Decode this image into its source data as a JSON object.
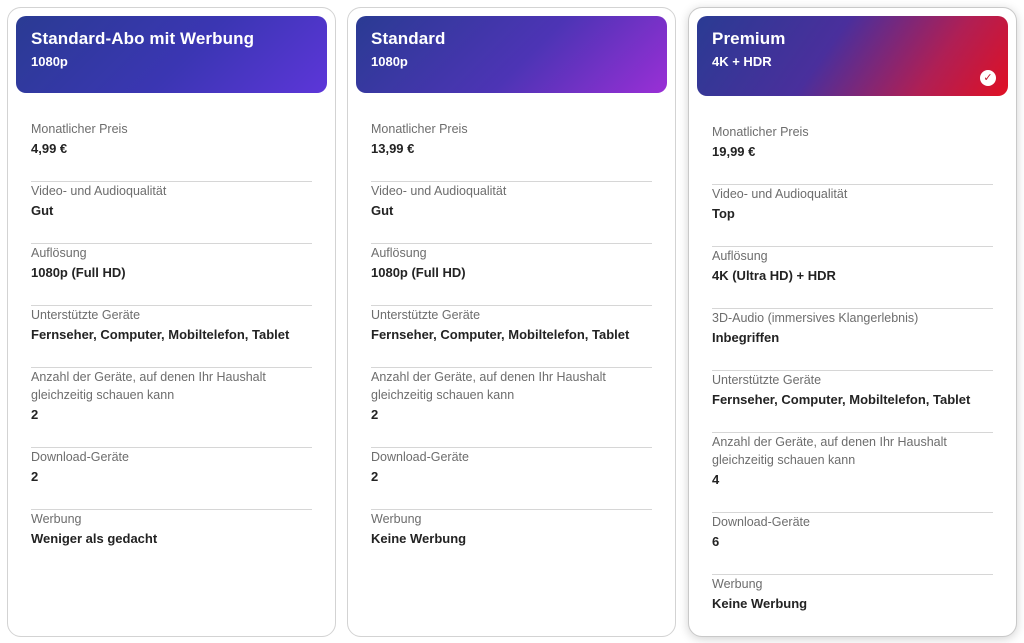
{
  "plans": [
    {
      "name": "Standard-Abo mit Werbung",
      "resolution_tag": "1080p",
      "features": [
        {
          "label": "Monatlicher Preis",
          "value": "4,99 €"
        },
        {
          "label": "Video- und Audioqualität",
          "value": "Gut"
        },
        {
          "label": "Auflösung",
          "value": "1080p (Full HD)"
        },
        {
          "label": "Unterstützte Geräte",
          "value": "Fernseher, Computer, Mobiltelefon, Tablet"
        },
        {
          "label": "Anzahl der Geräte, auf denen Ihr Haushalt gleichzeitig schauen kann",
          "value": "2"
        },
        {
          "label": "Download-Geräte",
          "value": "2"
        },
        {
          "label": "Werbung",
          "value": "Weniger als gedacht"
        }
      ]
    },
    {
      "name": "Standard",
      "resolution_tag": "1080p",
      "features": [
        {
          "label": "Monatlicher Preis",
          "value": "13,99 €"
        },
        {
          "label": "Video- und Audioqualität",
          "value": "Gut"
        },
        {
          "label": "Auflösung",
          "value": "1080p (Full HD)"
        },
        {
          "label": "Unterstützte Geräte",
          "value": "Fernseher, Computer, Mobiltelefon, Tablet"
        },
        {
          "label": "Anzahl der Geräte, auf denen Ihr Haushalt gleichzeitig schauen kann",
          "value": "2"
        },
        {
          "label": "Download-Geräte",
          "value": "2"
        },
        {
          "label": "Werbung",
          "value": "Keine Werbung"
        }
      ]
    },
    {
      "name": "Premium",
      "resolution_tag": "4K + HDR",
      "selected": true,
      "features": [
        {
          "label": "Monatlicher Preis",
          "value": "19,99 €"
        },
        {
          "label": "Video- und Audioqualität",
          "value": "Top"
        },
        {
          "label": "Auflösung",
          "value": "4K (Ultra HD) + HDR"
        },
        {
          "label": "3D-Audio (immersives Klangerlebnis)",
          "value": "Inbegriffen"
        },
        {
          "label": "Unterstützte Geräte",
          "value": "Fernseher, Computer, Mobiltelefon, Tablet"
        },
        {
          "label": "Anzahl der Geräte, auf denen Ihr Haushalt gleichzeitig schauen kann",
          "value": "4"
        },
        {
          "label": "Download-Geräte",
          "value": "6"
        },
        {
          "label": "Werbung",
          "value": "Keine Werbung"
        }
      ]
    }
  ],
  "icons": {
    "selected_badge": "checkmark-icon"
  },
  "colors": {
    "accent_red": "#e01024",
    "accent_blue": "#2a3b93",
    "accent_purple": "#5d36d9"
  }
}
